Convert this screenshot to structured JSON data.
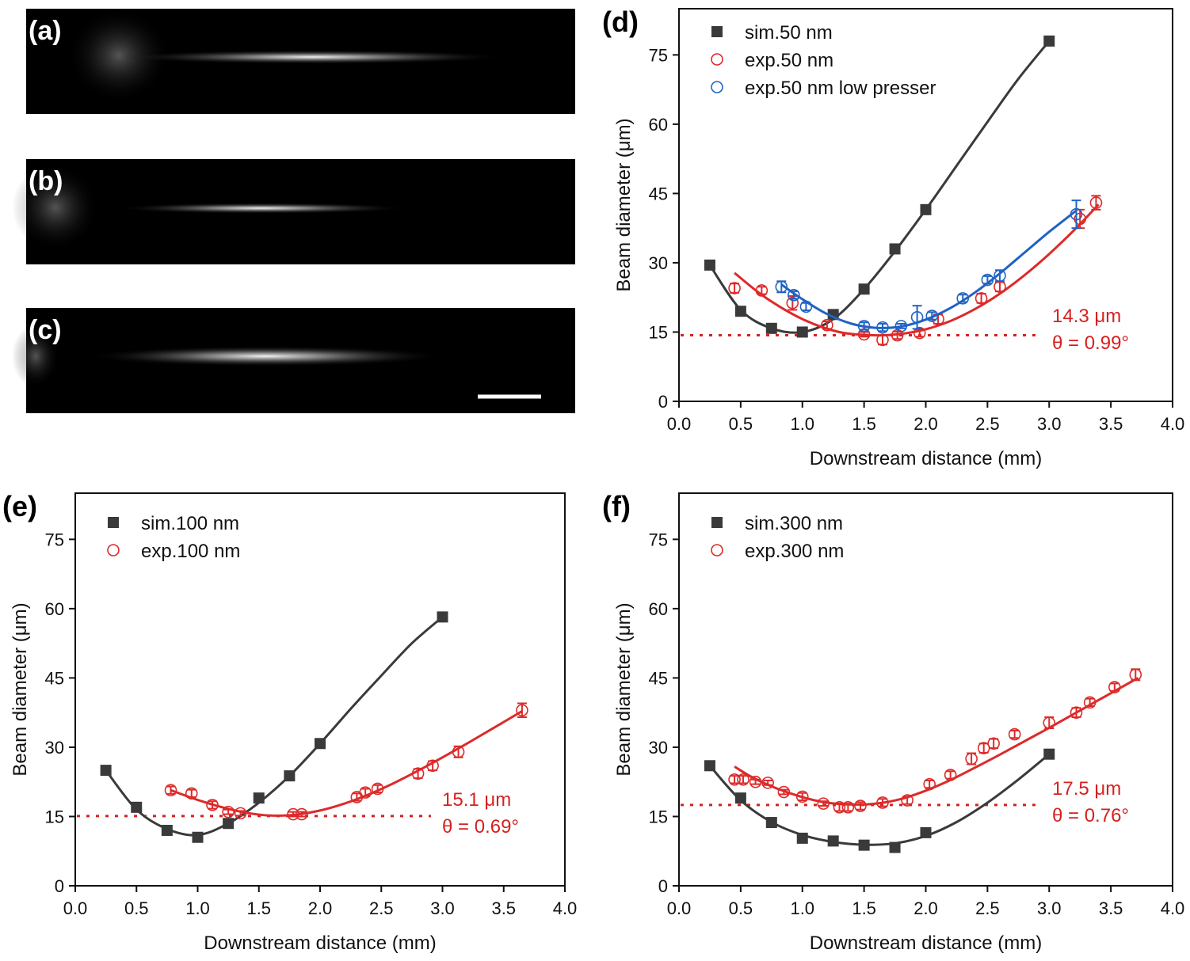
{
  "images": [
    {
      "label": "(a)"
    },
    {
      "label": "(b)"
    },
    {
      "label": "(c)"
    }
  ],
  "colors": {
    "sim": "#3a3a3a",
    "exp": "#dd2a2a",
    "low": "#1f63c4",
    "ref": "#d62020"
  },
  "chart_data": [
    {
      "panel": "(d)",
      "type": "scatter",
      "xlabel": "Downstream distance (mm)",
      "ylabel": "Beam diameter (μm)",
      "xlim": [
        0,
        4
      ],
      "ylim": [
        0,
        85
      ],
      "xticks": [
        "0.0",
        "0.5",
        "1.0",
        "1.5",
        "2.0",
        "2.5",
        "3.0",
        "3.5",
        "4.0"
      ],
      "yticks": [
        "0",
        "15",
        "30",
        "45",
        "60",
        "75"
      ],
      "legend_position": "top-left",
      "series": [
        {
          "name": "sim.50 nm",
          "marker": "square",
          "color": "#3a3a3a",
          "x": [
            0.25,
            0.5,
            0.75,
            1.0,
            1.25,
            1.5,
            1.75,
            2.0,
            3.0
          ],
          "y": [
            29.5,
            19.5,
            15.8,
            15.0,
            18.8,
            24.3,
            33.0,
            41.5,
            78.0
          ],
          "fit_x": [
            0.25,
            0.5,
            0.75,
            1.0,
            1.25,
            1.5,
            1.75,
            2.0,
            2.25,
            2.5,
            2.75,
            3.0
          ],
          "fit_y": [
            29.5,
            19.8,
            15.8,
            15.0,
            17.8,
            24.3,
            32.5,
            41.5,
            51.0,
            60.5,
            69.8,
            78.0
          ]
        },
        {
          "name": "exp.50 nm",
          "marker": "circle",
          "color": "#dd2a2a",
          "x": [
            0.45,
            0.67,
            0.92,
            1.2,
            1.5,
            1.65,
            1.77,
            1.95,
            2.1,
            2.45,
            2.6,
            3.25,
            3.38
          ],
          "y": [
            24.5,
            24.0,
            21.3,
            16.5,
            14.5,
            13.3,
            14.3,
            14.8,
            17.8,
            22.3,
            24.8,
            39.5,
            43.0
          ],
          "err": [
            1.0,
            0.8,
            1.5,
            0.8,
            0.5,
            1.0,
            0.8,
            0.8,
            1.0,
            1.0,
            1.0,
            2.0,
            1.5
          ],
          "fit_x": [
            0.45,
            0.7,
            1.0,
            1.3,
            1.6,
            1.8,
            2.0,
            2.2,
            2.4,
            2.6,
            2.8,
            3.0,
            3.2,
            3.4
          ],
          "fit_y": [
            27.8,
            22.5,
            17.8,
            15.0,
            14.3,
            14.6,
            15.6,
            17.4,
            20.0,
            23.3,
            27.3,
            31.9,
            37.0,
            42.6
          ]
        },
        {
          "name": "exp.50 nm low presser",
          "marker": "circle",
          "color": "#1f63c4",
          "x": [
            0.83,
            0.93,
            1.03,
            1.5,
            1.65,
            1.8,
            1.93,
            2.05,
            2.3,
            2.5,
            2.6,
            3.22
          ],
          "y": [
            24.8,
            23.0,
            20.5,
            16.3,
            16.0,
            16.3,
            18.2,
            18.5,
            22.3,
            26.3,
            27.2,
            40.5
          ],
          "err": [
            1.2,
            0.8,
            0.8,
            0.8,
            0.8,
            0.5,
            2.5,
            0.8,
            0.8,
            0.8,
            1.2,
            3.0
          ],
          "fit_x": [
            0.83,
            1.0,
            1.2,
            1.4,
            1.6,
            1.8,
            2.0,
            2.2,
            2.4,
            2.6,
            2.8,
            3.0,
            3.22
          ],
          "fit_y": [
            25.3,
            22.1,
            18.9,
            16.8,
            15.9,
            16.2,
            17.7,
            20.2,
            23.6,
            27.7,
            32.2,
            36.7,
            41.3
          ]
        }
      ],
      "reference_line": {
        "y": 14.3
      },
      "annotations": [
        "14.3 μm",
        "θ = 0.99°"
      ]
    },
    {
      "panel": "(e)",
      "type": "scatter",
      "xlabel": "Downstream distance (mm)",
      "ylabel": "Beam diameter (μm)",
      "xlim": [
        0,
        4
      ],
      "ylim": [
        0,
        85
      ],
      "xticks": [
        "0.0",
        "0.5",
        "1.0",
        "1.5",
        "2.0",
        "2.5",
        "3.0",
        "3.5",
        "4.0"
      ],
      "yticks": [
        "0",
        "15",
        "30",
        "45",
        "60",
        "75"
      ],
      "legend_position": "top-left",
      "series": [
        {
          "name": "sim.100 nm",
          "marker": "square",
          "color": "#3a3a3a",
          "x": [
            0.25,
            0.5,
            0.75,
            1.0,
            1.25,
            1.5,
            1.75,
            2.0,
            3.0
          ],
          "y": [
            25.0,
            17.0,
            12.0,
            10.5,
            13.5,
            19.0,
            23.8,
            30.8,
            58.2
          ],
          "fit_x": [
            0.25,
            0.5,
            0.75,
            1.0,
            1.25,
            1.5,
            1.75,
            2.0,
            2.25,
            2.5,
            2.75,
            3.0
          ],
          "fit_y": [
            25.0,
            16.5,
            12.3,
            11.0,
            13.5,
            18.0,
            23.8,
            30.8,
            38.3,
            45.5,
            52.5,
            58.2
          ]
        },
        {
          "name": "exp.100 nm",
          "marker": "circle",
          "color": "#dd2a2a",
          "x": [
            0.78,
            0.95,
            1.12,
            1.25,
            1.35,
            1.78,
            1.85,
            2.3,
            2.37,
            2.47,
            2.8,
            2.92,
            3.13,
            3.65
          ],
          "y": [
            20.7,
            20.0,
            17.5,
            16.0,
            15.7,
            15.5,
            15.5,
            19.2,
            20.2,
            21.0,
            24.3,
            26.0,
            29.0,
            38.0
          ],
          "err": [
            0.8,
            0.8,
            0.8,
            0.5,
            0.5,
            0.5,
            0.5,
            0.8,
            0.8,
            0.8,
            1.0,
            1.0,
            1.2,
            1.5
          ],
          "fit_x": [
            0.78,
            1.0,
            1.2,
            1.4,
            1.6,
            1.8,
            2.0,
            2.2,
            2.4,
            2.6,
            2.8,
            3.0,
            3.2,
            3.4,
            3.65
          ],
          "fit_y": [
            20.7,
            18.6,
            17.0,
            15.8,
            15.2,
            15.4,
            16.3,
            17.8,
            19.8,
            22.2,
            24.9,
            27.8,
            30.8,
            33.9,
            37.8
          ]
        }
      ],
      "reference_line": {
        "y": 15.1
      },
      "annotations": [
        "15.1 μm",
        "θ = 0.69°"
      ]
    },
    {
      "panel": "(f)",
      "type": "scatter",
      "xlabel": "Downstream distance (mm)",
      "ylabel": "Beam diameter (μm)",
      "xlim": [
        0,
        4
      ],
      "ylim": [
        0,
        85
      ],
      "xticks": [
        "0.0",
        "0.5",
        "1.0",
        "1.5",
        "2.0",
        "2.5",
        "3.0",
        "3.5",
        "4.0"
      ],
      "yticks": [
        "0",
        "15",
        "30",
        "45",
        "60",
        "75"
      ],
      "legend_position": "top-left",
      "series": [
        {
          "name": "sim.300 nm",
          "marker": "square",
          "color": "#3a3a3a",
          "x": [
            0.25,
            0.5,
            0.75,
            1.0,
            1.25,
            1.5,
            1.75,
            2.0,
            3.0
          ],
          "y": [
            26.0,
            19.0,
            13.7,
            10.3,
            9.7,
            8.8,
            8.3,
            11.5,
            28.5
          ],
          "fit_x": [
            0.25,
            0.5,
            0.75,
            1.0,
            1.25,
            1.5,
            1.75,
            2.0,
            2.25,
            2.5,
            2.75,
            3.0
          ],
          "fit_y": [
            26.0,
            18.5,
            13.8,
            11.0,
            9.5,
            8.9,
            9.2,
            10.8,
            13.8,
            18.0,
            23.0,
            28.5
          ]
        },
        {
          "name": "exp.300 nm",
          "marker": "circle",
          "color": "#dd2a2a",
          "x": [
            0.45,
            0.52,
            0.62,
            0.72,
            0.85,
            1.0,
            1.17,
            1.3,
            1.37,
            1.47,
            1.65,
            1.85,
            2.03,
            2.2,
            2.37,
            2.47,
            2.55,
            2.72,
            3.0,
            3.22,
            3.33,
            3.53,
            3.7
          ],
          "y": [
            23.0,
            23.0,
            22.5,
            22.3,
            20.3,
            19.3,
            17.8,
            17.0,
            17.0,
            17.3,
            18.0,
            18.5,
            22.0,
            24.0,
            27.5,
            29.8,
            30.8,
            32.8,
            35.3,
            37.5,
            39.7,
            43.0,
            45.7
          ],
          "err": [
            0.8,
            0.8,
            0.5,
            0.5,
            0.5,
            0.8,
            0.5,
            0.8,
            0.8,
            0.8,
            0.8,
            0.8,
            0.8,
            0.8,
            1.2,
            1.0,
            1.0,
            0.8,
            1.2,
            1.0,
            0.8,
            0.8,
            1.2
          ],
          "fit_x": [
            0.45,
            0.6,
            0.8,
            1.0,
            1.2,
            1.4,
            1.6,
            1.8,
            2.0,
            2.2,
            2.4,
            2.6,
            2.8,
            3.0,
            3.2,
            3.4,
            3.6,
            3.72
          ],
          "fit_y": [
            25.8,
            23.4,
            21.0,
            19.2,
            18.0,
            17.6,
            17.8,
            18.8,
            20.6,
            22.9,
            25.6,
            28.4,
            31.3,
            34.2,
            37.2,
            40.2,
            43.2,
            45.0
          ]
        }
      ],
      "reference_line": {
        "y": 17.5
      },
      "annotations": [
        "17.5 μm",
        "θ = 0.76°"
      ]
    }
  ]
}
